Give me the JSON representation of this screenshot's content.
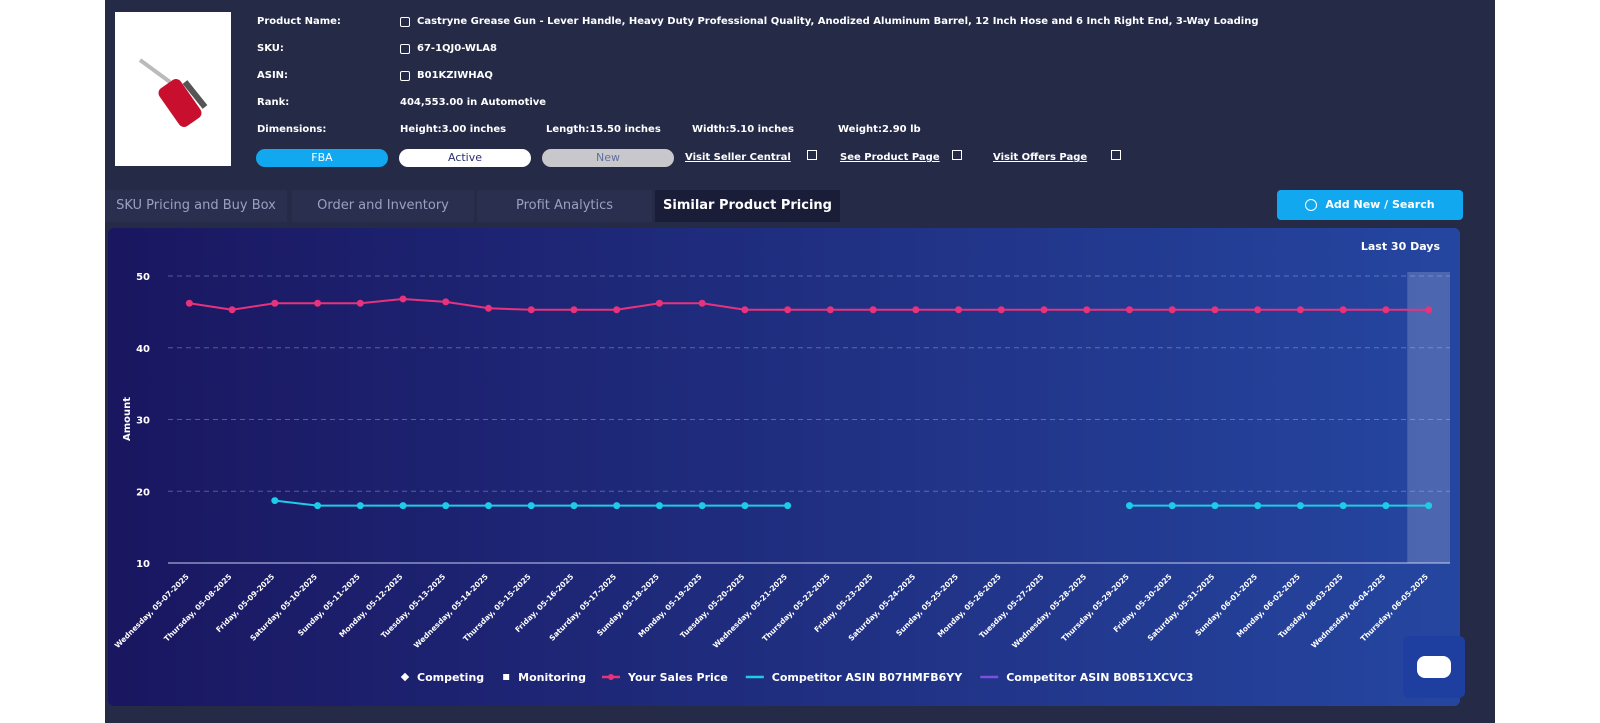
{
  "product": {
    "fields": [
      {
        "label": "Product Name:",
        "value": "Castryne Grease Gun - Lever Handle, Heavy Duty Professional Quality, Anodized Aluminum Barrel, 12 Inch Hose and 6 Inch Right End, 3-Way Loading"
      },
      {
        "label": "SKU:",
        "value": "67-1QJ0-WLA8"
      },
      {
        "label": "ASIN:",
        "value": "B01KZIWHAQ"
      },
      {
        "label": "Rank:",
        "value": "404,553.00 in Automotive"
      }
    ],
    "dimensions_label": "Dimensions:",
    "dimensions": [
      "Height:3.00 inches",
      "Length:15.50 inches",
      "Width:5.10 inches",
      "Weight:2.90 lb"
    ],
    "badges": [
      "FBA",
      "Active",
      "New"
    ],
    "links": [
      "Visit Seller Central",
      "See Product Page",
      "Visit Offers Page"
    ]
  },
  "tabs": [
    "SKU Pricing and Buy Box",
    "Order and Inventory",
    "Profit Analytics",
    "Similar Product Pricing"
  ],
  "active_tab": 3,
  "button": "Add New / Search",
  "chart_data": {
    "type": "line",
    "period": "Last 30 Days",
    "y_label": "Amount",
    "categories": [
      "Wednesday, 05-07-2025",
      "Thursday, 05-08-2025",
      "Friday, 05-09-2025",
      "Saturday, 05-10-2025",
      "Sunday, 05-11-2025",
      "Monday, 05-12-2025",
      "Tuesday, 05-13-2025",
      "Wednesday, 05-14-2025",
      "Thursday, 05-15-2025",
      "Friday, 05-16-2025",
      "Saturday, 05-17-2025",
      "Sunday, 05-18-2025",
      "Monday, 05-19-2025",
      "Tuesday, 05-20-2025",
      "Wednesday, 05-21-2025",
      "Thursday, 05-22-2025",
      "Friday, 05-23-2025",
      "Saturday, 05-24-2025",
      "Sunday, 05-25-2025",
      "Monday, 05-26-2025",
      "Tuesday, 05-27-2025",
      "Wednesday, 05-28-2025",
      "Thursday, 05-29-2025",
      "Friday, 05-30-2025",
      "Saturday, 05-31-2025",
      "Sunday, 06-01-2025",
      "Monday, 06-02-2025",
      "Tuesday, 06-03-2025",
      "Wednesday, 06-04-2025",
      "Thursday, 06-05-2025"
    ],
    "series": [
      {
        "name": "Your Sales Price",
        "color": "#e8327c",
        "values": [
          46.2,
          45.3,
          46.2,
          46.2,
          46.2,
          46.8,
          46.4,
          45.5,
          45.3,
          45.3,
          45.3,
          46.2,
          46.2,
          45.3,
          45.3,
          45.3,
          45.3,
          45.3,
          45.3,
          45.3,
          45.3,
          45.3,
          45.3,
          45.3,
          45.3,
          45.3,
          45.3,
          45.3,
          45.3,
          45.3
        ]
      },
      {
        "name": "Competitor ASIN B07HMFB6YY",
        "color": "#1ecbe8",
        "values": [
          null,
          null,
          18.7,
          18,
          18,
          18,
          18,
          18,
          18,
          18,
          18,
          18,
          18,
          18,
          18,
          null,
          null,
          null,
          null,
          null,
          null,
          null,
          18,
          18,
          18,
          18,
          18,
          18,
          18,
          18
        ]
      },
      {
        "name": "Competitor ASIN B0B51XCVC3",
        "color": "#7b4fe0",
        "values": [
          null,
          null,
          null,
          null,
          null,
          null,
          null,
          null,
          null,
          null,
          null,
          null,
          null,
          null,
          null,
          null,
          null,
          null,
          null,
          null,
          null,
          null,
          null,
          null,
          null,
          null,
          null,
          null,
          null,
          null
        ]
      }
    ],
    "marker_legend": [
      {
        "name": "Competing",
        "shape": "diamond"
      },
      {
        "name": "Monitoring",
        "shape": "square"
      }
    ],
    "highlight_index": 29,
    "ylim": [
      10,
      50
    ],
    "yticks": [
      10,
      20,
      30,
      40,
      50
    ],
    "grid": true
  }
}
